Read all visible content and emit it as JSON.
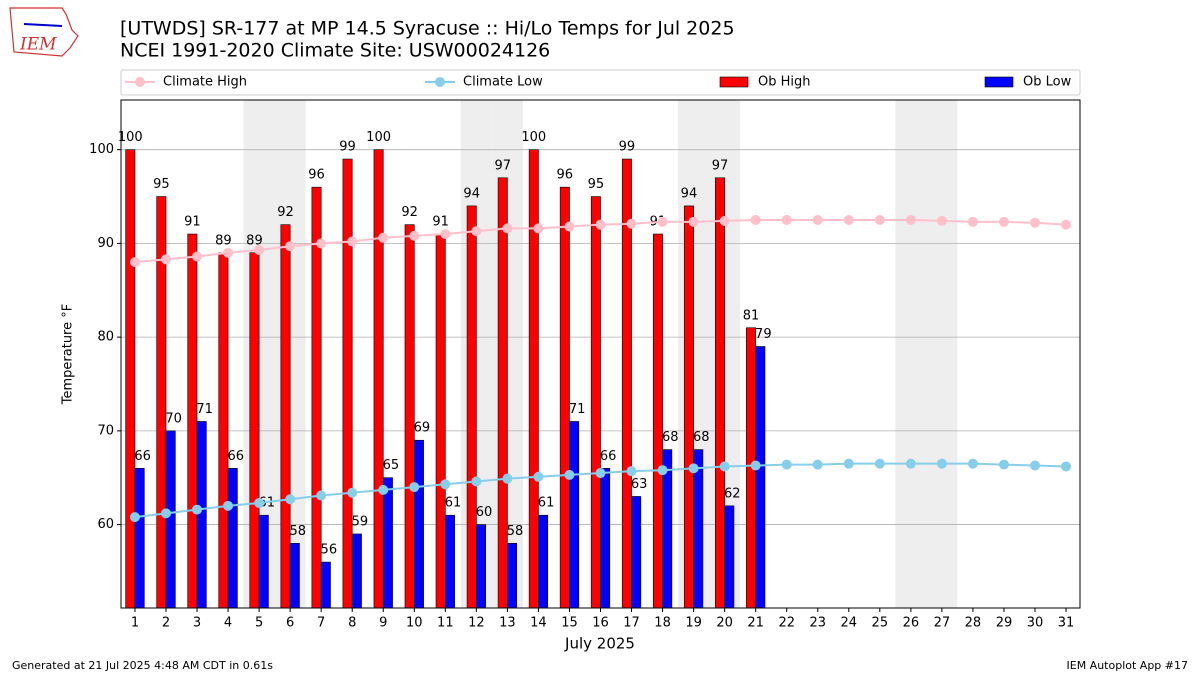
{
  "chart_data": {
    "type": "bar",
    "title": "[UTWDS] SR-177 at MP 14.5 Syracuse  :: Hi/Lo Temps for Jul 2025",
    "subtitle": "NCEI 1991-2020 Climate Site: USW00024126",
    "logo_text": "IEM",
    "x_label": "July 2025",
    "y_label": "Temperature °F",
    "footer_left": "Generated at 21 Jul 2025 4:48 AM CDT in 0.61s",
    "footer_right": "IEM Autoplot App #17",
    "x": [
      1,
      2,
      3,
      4,
      5,
      6,
      7,
      8,
      9,
      10,
      11,
      12,
      13,
      14,
      15,
      16,
      17,
      18,
      19,
      20,
      21,
      22,
      23,
      24,
      25,
      26,
      27,
      28,
      29,
      30,
      31
    ],
    "xlim": [
      0.55,
      31.45
    ],
    "ylim": [
      51.1,
      105.3
    ],
    "yticks": [
      60,
      70,
      80,
      90,
      100
    ],
    "grid": true,
    "shaded_days": [
      5,
      6,
      12,
      13,
      19,
      20,
      26,
      27
    ],
    "shade_color": "#eeeeee",
    "legend_position": "top",
    "series": [
      {
        "name": "Climate High",
        "type": "line",
        "color": "#ffc0cb",
        "values": [
          88.0,
          88.3,
          88.6,
          89.0,
          89.3,
          89.7,
          90.0,
          90.2,
          90.6,
          90.8,
          91.0,
          91.3,
          91.6,
          91.6,
          91.8,
          92.0,
          92.1,
          92.3,
          92.3,
          92.4,
          92.5,
          92.5,
          92.5,
          92.5,
          92.5,
          92.5,
          92.4,
          92.3,
          92.3,
          92.2,
          92.0
        ]
      },
      {
        "name": "Climate Low",
        "type": "line",
        "color": "#87ceeb",
        "values": [
          60.8,
          61.2,
          61.6,
          62.0,
          62.3,
          62.7,
          63.1,
          63.4,
          63.7,
          64.0,
          64.3,
          64.6,
          64.9,
          65.1,
          65.3,
          65.5,
          65.7,
          65.8,
          66.0,
          66.2,
          66.3,
          66.4,
          66.4,
          66.5,
          66.5,
          66.5,
          66.5,
          66.5,
          66.4,
          66.3,
          66.2
        ]
      },
      {
        "name": "Ob High",
        "type": "bar",
        "color": "#ff0000",
        "values": [
          100,
          95,
          91,
          89,
          89,
          92,
          96,
          99,
          100,
          92,
          91,
          94,
          97,
          100,
          96,
          95,
          99,
          91,
          94,
          97,
          81,
          null,
          null,
          null,
          null,
          null,
          null,
          null,
          null,
          null,
          null
        ]
      },
      {
        "name": "Ob Low",
        "type": "bar",
        "color": "#0000ff",
        "values": [
          66,
          70,
          71,
          66,
          61,
          58,
          56,
          59,
          65,
          69,
          61,
          60,
          58,
          61,
          71,
          66,
          63,
          68,
          68,
          62,
          79,
          null,
          null,
          null,
          null,
          null,
          null,
          null,
          null,
          null,
          null
        ]
      }
    ]
  }
}
